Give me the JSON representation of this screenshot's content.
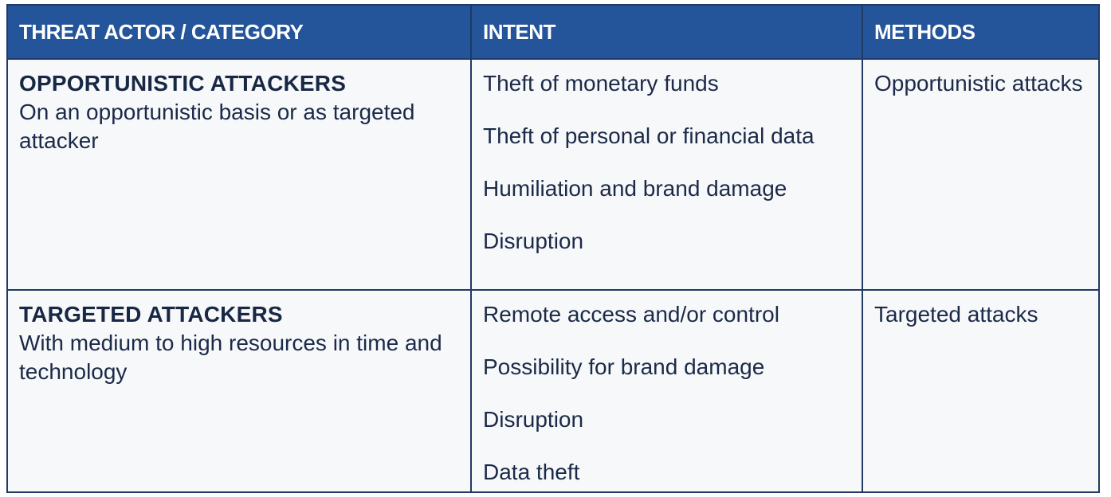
{
  "header": {
    "col1": "THREAT ACTOR / CATEGORY",
    "col2": "INTENT",
    "col3": "METHODS"
  },
  "rows": [
    {
      "actor_title": "OPPORTUNISTIC ATTACKERS",
      "actor_desc": "On an opportunistic basis or as targeted attacker",
      "intents": [
        "Theft of monetary funds",
        "Theft of personal or financial data",
        "Humiliation and brand damage",
        "Disruption"
      ],
      "methods": "Opportunistic attacks"
    },
    {
      "actor_title": "TARGETED ATTACKERS",
      "actor_desc": "With medium to high resources in time and technology",
      "intents": [
        "Remote access and/or control",
        "Possibility for brand damage",
        "Disruption",
        "Data theft"
      ],
      "methods": "Targeted attacks"
    }
  ],
  "colors": {
    "header_bg": "#24549a",
    "header_text": "#ffffff",
    "border": "#1f3a64",
    "cell_bg": "#f7f8fa",
    "text": "#1b2a48"
  }
}
